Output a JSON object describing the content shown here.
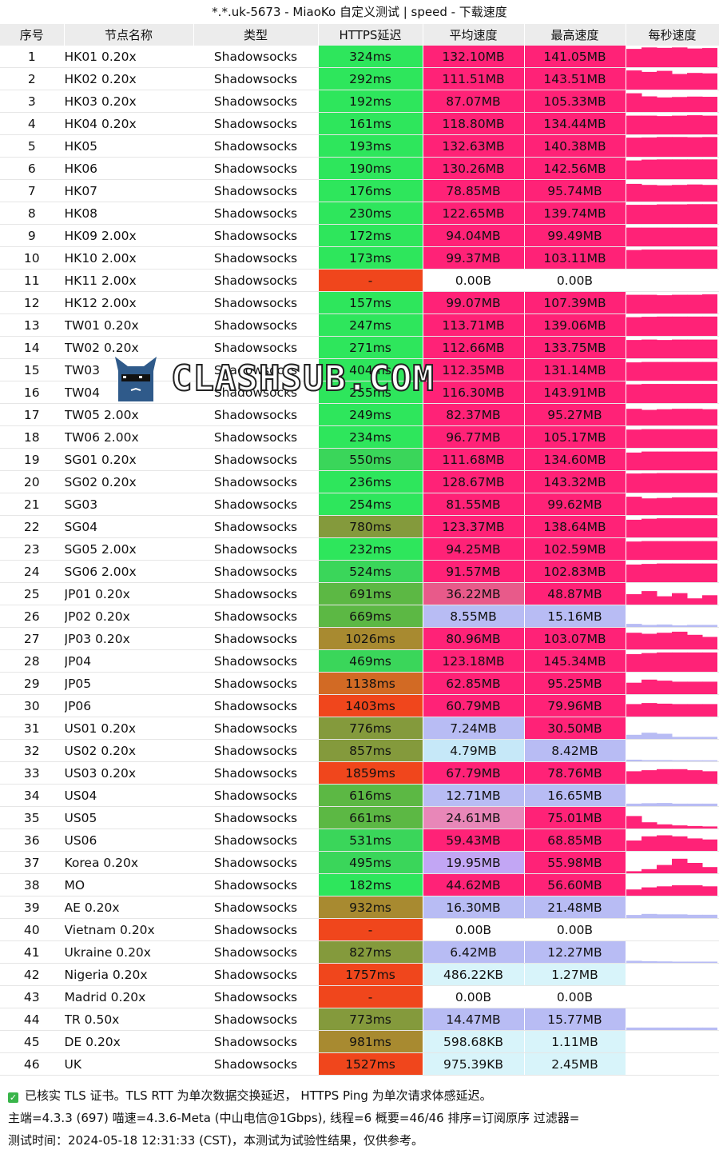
{
  "window": {
    "title": "*.*.uk-5673 - MiaoKo 自定义测试 | speed - 下载速度"
  },
  "columns": [
    "序号",
    "节点名称",
    "类型",
    "HTTPS延迟",
    "平均速度",
    "最高速度",
    "每秒速度"
  ],
  "colors": {
    "header_bg": "#ececec",
    "ping_fast": "#2ee65c",
    "ping_ok": "#3ad65a",
    "ping_mid": "#5cb844",
    "ping_olive": "#849a3c",
    "ping_brown": "#a88a30",
    "ping_orange": "#d26a24",
    "ping_red": "#f0461c",
    "speed_high": "#ff2277",
    "speed_mid": "#e85a8a",
    "speed_pink": "#e887b8",
    "speed_purple": "#c2a6f4",
    "speed_lav": "#b8bcf4",
    "speed_light": "#c6e8f8",
    "speed_pale": "#d8f4fa",
    "speed_zero": "#ffffff",
    "bar_high": "#ff2277",
    "bar_low": "#b8bcf4"
  },
  "rows": [
    {
      "idx": "1",
      "name": "HK01 0.20x",
      "type": "Shadowsocks",
      "ping": "324ms",
      "avg": "132.10MB",
      "max": "141.05MB",
      "pc": "ping_fast",
      "ac": "speed_high",
      "mc": "speed_high",
      "bar": [
        0.88,
        0.95,
        0.93,
        0.95,
        0.9,
        0.92
      ],
      "bc": "bar_high"
    },
    {
      "idx": "2",
      "name": "HK02 0.20x",
      "type": "Shadowsocks",
      "ping": "292ms",
      "avg": "111.51MB",
      "max": "143.51MB",
      "pc": "ping_fast",
      "ac": "speed_high",
      "mc": "speed_high",
      "bar": [
        0.92,
        0.85,
        0.9,
        0.75,
        0.8,
        0.78
      ],
      "bc": "bar_high"
    },
    {
      "idx": "3",
      "name": "HK03 0.20x",
      "type": "Shadowsocks",
      "ping": "192ms",
      "avg": "87.07MB",
      "max": "105.33MB",
      "pc": "ping_fast",
      "ac": "speed_high",
      "mc": "speed_high",
      "bar": [
        0.9,
        0.75,
        0.7,
        0.72,
        0.74,
        0.73
      ],
      "bc": "bar_high"
    },
    {
      "idx": "4",
      "name": "HK04 0.20x",
      "type": "Shadowsocks",
      "ping": "161ms",
      "avg": "118.80MB",
      "max": "134.44MB",
      "pc": "ping_fast",
      "ac": "speed_high",
      "mc": "speed_high",
      "bar": [
        0.9,
        0.9,
        0.88,
        0.9,
        0.92,
        0.9
      ],
      "bc": "bar_high"
    },
    {
      "idx": "5",
      "name": "HK05",
      "type": "Shadowsocks",
      "ping": "193ms",
      "avg": "132.63MB",
      "max": "140.38MB",
      "pc": "ping_fast",
      "ac": "speed_high",
      "mc": "speed_high",
      "bar": [
        0.92,
        0.93,
        0.95,
        0.95,
        0.94,
        0.95
      ],
      "bc": "bar_high"
    },
    {
      "idx": "6",
      "name": "HK06",
      "type": "Shadowsocks",
      "ping": "190ms",
      "avg": "130.26MB",
      "max": "142.56MB",
      "pc": "ping_fast",
      "ac": "speed_high",
      "mc": "speed_high",
      "bar": [
        0.9,
        0.94,
        0.95,
        0.95,
        0.95,
        0.95
      ],
      "bc": "bar_high"
    },
    {
      "idx": "7",
      "name": "HK07",
      "type": "Shadowsocks",
      "ping": "176ms",
      "avg": "78.85MB",
      "max": "95.74MB",
      "pc": "ping_fast",
      "ac": "speed_high",
      "mc": "speed_high",
      "bar": [
        0.85,
        0.8,
        0.78,
        0.8,
        0.82,
        0.8
      ],
      "bc": "bar_high"
    },
    {
      "idx": "8",
      "name": "HK08",
      "type": "Shadowsocks",
      "ping": "230ms",
      "avg": "122.65MB",
      "max": "139.74MB",
      "pc": "ping_fast",
      "ac": "speed_high",
      "mc": "speed_high",
      "bar": [
        0.92,
        0.92,
        0.94,
        0.94,
        0.95,
        0.95
      ],
      "bc": "bar_high"
    },
    {
      "idx": "9",
      "name": "HK09 2.00x",
      "type": "Shadowsocks",
      "ping": "172ms",
      "avg": "94.04MB",
      "max": "99.49MB",
      "pc": "ping_fast",
      "ac": "speed_high",
      "mc": "speed_high",
      "bar": [
        0.9,
        0.9,
        0.9,
        0.9,
        0.9,
        0.9
      ],
      "bc": "bar_high"
    },
    {
      "idx": "10",
      "name": "HK10 2.00x",
      "type": "Shadowsocks",
      "ping": "173ms",
      "avg": "99.37MB",
      "max": "103.11MB",
      "pc": "ping_fast",
      "ac": "speed_high",
      "mc": "speed_high",
      "bar": [
        0.9,
        0.92,
        0.92,
        0.92,
        0.92,
        0.92
      ],
      "bc": "bar_high"
    },
    {
      "idx": "11",
      "name": "HK11 2.00x",
      "type": "Shadowsocks",
      "ping": "-",
      "avg": "0.00B",
      "max": "0.00B",
      "pc": "ping_red",
      "ac": "speed_zero",
      "mc": "speed_zero",
      "bar": [
        0,
        0,
        0,
        0,
        0,
        0
      ],
      "bc": "bar_high"
    },
    {
      "idx": "12",
      "name": "HK12 2.00x",
      "type": "Shadowsocks",
      "ping": "157ms",
      "avg": "99.07MB",
      "max": "107.39MB",
      "pc": "ping_fast",
      "ac": "speed_high",
      "mc": "speed_high",
      "bar": [
        0.9,
        0.9,
        0.88,
        0.9,
        0.9,
        0.92
      ],
      "bc": "bar_high"
    },
    {
      "idx": "13",
      "name": "TW01 0.20x",
      "type": "Shadowsocks",
      "ping": "247ms",
      "avg": "113.71MB",
      "max": "139.06MB",
      "pc": "ping_fast",
      "ac": "speed_high",
      "mc": "speed_high",
      "bar": [
        0.9,
        0.92,
        0.93,
        0.93,
        0.93,
        0.93
      ],
      "bc": "bar_high"
    },
    {
      "idx": "14",
      "name": "TW02 0.20x",
      "type": "Shadowsocks",
      "ping": "271ms",
      "avg": "112.66MB",
      "max": "133.75MB",
      "pc": "ping_fast",
      "ac": "speed_high",
      "mc": "speed_high",
      "bar": [
        0.88,
        0.9,
        0.88,
        0.9,
        0.9,
        0.9
      ],
      "bc": "bar_high"
    },
    {
      "idx": "15",
      "name": "TW03",
      "type": "Shadowsocks",
      "ping": "404ms",
      "avg": "112.35MB",
      "max": "131.14MB",
      "pc": "ping_fast",
      "ac": "speed_high",
      "mc": "speed_high",
      "bar": [
        0.88,
        0.9,
        0.9,
        0.9,
        0.9,
        0.9
      ],
      "bc": "bar_high"
    },
    {
      "idx": "16",
      "name": "TW04",
      "type": "Shadowsocks",
      "ping": "255ms",
      "avg": "116.30MB",
      "max": "143.91MB",
      "pc": "ping_fast",
      "ac": "speed_high",
      "mc": "speed_high",
      "bar": [
        0.9,
        0.92,
        0.92,
        0.92,
        0.92,
        0.92
      ],
      "bc": "bar_high"
    },
    {
      "idx": "17",
      "name": "TW05 2.00x",
      "type": "Shadowsocks",
      "ping": "249ms",
      "avg": "82.37MB",
      "max": "95.27MB",
      "pc": "ping_fast",
      "ac": "speed_high",
      "mc": "speed_high",
      "bar": [
        0.8,
        0.75,
        0.78,
        0.8,
        0.8,
        0.78
      ],
      "bc": "bar_high"
    },
    {
      "idx": "18",
      "name": "TW06 2.00x",
      "type": "Shadowsocks",
      "ping": "234ms",
      "avg": "96.77MB",
      "max": "105.17MB",
      "pc": "ping_fast",
      "ac": "speed_high",
      "mc": "speed_high",
      "bar": [
        0.88,
        0.9,
        0.9,
        0.9,
        0.9,
        0.9
      ],
      "bc": "bar_high"
    },
    {
      "idx": "19",
      "name": "SG01 0.20x",
      "type": "Shadowsocks",
      "ping": "550ms",
      "avg": "111.68MB",
      "max": "134.60MB",
      "pc": "ping_ok",
      "ac": "speed_high",
      "mc": "speed_high",
      "bar": [
        0.85,
        0.9,
        0.9,
        0.9,
        0.9,
        0.9
      ],
      "bc": "bar_high"
    },
    {
      "idx": "20",
      "name": "SG02 0.20x",
      "type": "Shadowsocks",
      "ping": "236ms",
      "avg": "128.67MB",
      "max": "143.32MB",
      "pc": "ping_fast",
      "ac": "speed_high",
      "mc": "speed_high",
      "bar": [
        0.92,
        0.93,
        0.94,
        0.94,
        0.94,
        0.94
      ],
      "bc": "bar_high"
    },
    {
      "idx": "21",
      "name": "SG03",
      "type": "Shadowsocks",
      "ping": "254ms",
      "avg": "81.55MB",
      "max": "99.62MB",
      "pc": "ping_fast",
      "ac": "speed_high",
      "mc": "speed_high",
      "bar": [
        0.88,
        0.8,
        0.82,
        0.85,
        0.85,
        0.85
      ],
      "bc": "bar_high"
    },
    {
      "idx": "22",
      "name": "SG04",
      "type": "Shadowsocks",
      "ping": "780ms",
      "avg": "123.37MB",
      "max": "138.64MB",
      "pc": "ping_olive",
      "ac": "speed_high",
      "mc": "speed_high",
      "bar": [
        0.85,
        0.9,
        0.92,
        0.92,
        0.92,
        0.92
      ],
      "bc": "bar_high"
    },
    {
      "idx": "23",
      "name": "SG05 2.00x",
      "type": "Shadowsocks",
      "ping": "232ms",
      "avg": "94.25MB",
      "max": "102.59MB",
      "pc": "ping_fast",
      "ac": "speed_high",
      "mc": "speed_high",
      "bar": [
        0.88,
        0.9,
        0.9,
        0.9,
        0.9,
        0.9
      ],
      "bc": "bar_high"
    },
    {
      "idx": "24",
      "name": "SG06 2.00x",
      "type": "Shadowsocks",
      "ping": "524ms",
      "avg": "91.57MB",
      "max": "102.83MB",
      "pc": "ping_ok",
      "ac": "speed_high",
      "mc": "speed_high",
      "bar": [
        0.85,
        0.88,
        0.9,
        0.9,
        0.9,
        0.9
      ],
      "bc": "bar_high"
    },
    {
      "idx": "25",
      "name": "JP01 0.20x",
      "type": "Shadowsocks",
      "ping": "691ms",
      "avg": "36.22MB",
      "max": "48.87MB",
      "pc": "ping_mid",
      "ac": "speed_mid",
      "mc": "speed_high",
      "bar": [
        0.5,
        0.65,
        0.4,
        0.55,
        0.3,
        0.45
      ],
      "bc": "bar_high"
    },
    {
      "idx": "26",
      "name": "JP02 0.20x",
      "type": "Shadowsocks",
      "ping": "669ms",
      "avg": "8.55MB",
      "max": "15.16MB",
      "pc": "ping_mid",
      "ac": "speed_lav",
      "mc": "speed_lav",
      "bar": [
        0.15,
        0.1,
        0.12,
        0.08,
        0.1,
        0.1
      ],
      "bc": "bar_low"
    },
    {
      "idx": "27",
      "name": "JP03 0.20x",
      "type": "Shadowsocks",
      "ping": "1026ms",
      "avg": "80.96MB",
      "max": "103.07MB",
      "pc": "ping_brown",
      "ac": "speed_high",
      "mc": "speed_high",
      "bar": [
        0.8,
        0.75,
        0.8,
        0.85,
        0.7,
        0.6
      ],
      "bc": "bar_high"
    },
    {
      "idx": "28",
      "name": "JP04",
      "type": "Shadowsocks",
      "ping": "469ms",
      "avg": "123.18MB",
      "max": "145.34MB",
      "pc": "ping_ok",
      "ac": "speed_high",
      "mc": "speed_high",
      "bar": [
        0.85,
        0.9,
        0.93,
        0.93,
        0.93,
        0.93
      ],
      "bc": "bar_high"
    },
    {
      "idx": "29",
      "name": "JP05",
      "type": "Shadowsocks",
      "ping": "1138ms",
      "avg": "62.85MB",
      "max": "95.25MB",
      "pc": "ping_orange",
      "ac": "speed_high",
      "mc": "speed_high",
      "bar": [
        0.55,
        0.7,
        0.65,
        0.6,
        0.6,
        0.6
      ],
      "bc": "bar_high"
    },
    {
      "idx": "30",
      "name": "JP06",
      "type": "Shadowsocks",
      "ping": "1403ms",
      "avg": "60.79MB",
      "max": "79.96MB",
      "pc": "ping_red",
      "ac": "speed_high",
      "mc": "speed_high",
      "bar": [
        0.6,
        0.65,
        0.62,
        0.6,
        0.6,
        0.6
      ],
      "bc": "bar_high"
    },
    {
      "idx": "31",
      "name": "US01 0.20x",
      "type": "Shadowsocks",
      "ping": "776ms",
      "avg": "7.24MB",
      "max": "30.50MB",
      "pc": "ping_olive",
      "ac": "speed_lav",
      "mc": "speed_high",
      "bar": [
        0.2,
        0.3,
        0.25,
        0.1,
        0.1,
        0.1
      ],
      "bc": "bar_low"
    },
    {
      "idx": "32",
      "name": "US02 0.20x",
      "type": "Shadowsocks",
      "ping": "857ms",
      "avg": "4.79MB",
      "max": "8.42MB",
      "pc": "ping_olive",
      "ac": "speed_light",
      "mc": "speed_lav",
      "bar": [
        0.08,
        0.06,
        0.06,
        0.05,
        0.05,
        0.05
      ],
      "bc": "bar_low"
    },
    {
      "idx": "33",
      "name": "US03 0.20x",
      "type": "Shadowsocks",
      "ping": "1859ms",
      "avg": "67.79MB",
      "max": "78.76MB",
      "pc": "ping_red",
      "ac": "speed_high",
      "mc": "speed_high",
      "bar": [
        0.6,
        0.65,
        0.7,
        0.7,
        0.65,
        0.6
      ],
      "bc": "bar_high"
    },
    {
      "idx": "34",
      "name": "US04",
      "type": "Shadowsocks",
      "ping": "616ms",
      "avg": "12.71MB",
      "max": "16.65MB",
      "pc": "ping_mid",
      "ac": "speed_lav",
      "mc": "speed_lav",
      "bar": [
        0.12,
        0.14,
        0.15,
        0.12,
        0.12,
        0.12
      ],
      "bc": "bar_low"
    },
    {
      "idx": "35",
      "name": "US05",
      "type": "Shadowsocks",
      "ping": "661ms",
      "avg": "24.61MB",
      "max": "75.01MB",
      "pc": "ping_mid",
      "ac": "speed_pink",
      "mc": "speed_high",
      "bar": [
        0.6,
        0.3,
        0.2,
        0.15,
        0.12,
        0.1
      ],
      "bc": "bar_high"
    },
    {
      "idx": "36",
      "name": "US06",
      "type": "Shadowsocks",
      "ping": "531ms",
      "avg": "59.43MB",
      "max": "68.85MB",
      "pc": "ping_ok",
      "ac": "speed_high",
      "mc": "speed_high",
      "bar": [
        0.5,
        0.7,
        0.75,
        0.7,
        0.6,
        0.55
      ],
      "bc": "bar_high"
    },
    {
      "idx": "37",
      "name": "Korea 0.20x",
      "type": "Shadowsocks",
      "ping": "495ms",
      "avg": "19.95MB",
      "max": "55.98MB",
      "pc": "ping_ok",
      "ac": "speed_purple",
      "mc": "speed_high",
      "bar": [
        0.1,
        0.2,
        0.4,
        0.7,
        0.5,
        0.3
      ],
      "bc": "bar_high"
    },
    {
      "idx": "38",
      "name": "MO",
      "type": "Shadowsocks",
      "ping": "182ms",
      "avg": "44.62MB",
      "max": "56.60MB",
      "pc": "ping_fast",
      "ac": "speed_high",
      "mc": "speed_high",
      "bar": [
        0.3,
        0.4,
        0.45,
        0.5,
        0.5,
        0.45
      ],
      "bc": "bar_high"
    },
    {
      "idx": "39",
      "name": "AE 0.20x",
      "type": "Shadowsocks",
      "ping": "932ms",
      "avg": "16.30MB",
      "max": "21.48MB",
      "pc": "ping_brown",
      "ac": "speed_lav",
      "mc": "speed_lav",
      "bar": [
        0.15,
        0.2,
        0.18,
        0.18,
        0.16,
        0.16
      ],
      "bc": "bar_low"
    },
    {
      "idx": "40",
      "name": "Vietnam 0.20x",
      "type": "Shadowsocks",
      "ping": "-",
      "avg": "0.00B",
      "max": "0.00B",
      "pc": "ping_red",
      "ac": "speed_zero",
      "mc": "speed_zero",
      "bar": [
        0,
        0,
        0,
        0,
        0,
        0
      ],
      "bc": "bar_low"
    },
    {
      "idx": "41",
      "name": "Ukraine 0.20x",
      "type": "Shadowsocks",
      "ping": "827ms",
      "avg": "6.42MB",
      "max": "12.27MB",
      "pc": "ping_olive",
      "ac": "speed_lav",
      "mc": "speed_lav",
      "bar": [
        0.1,
        0.08,
        0.07,
        0.06,
        0.06,
        0.06
      ],
      "bc": "bar_low"
    },
    {
      "idx": "42",
      "name": "Nigeria 0.20x",
      "type": "Shadowsocks",
      "ping": "1757ms",
      "avg": "486.22KB",
      "max": "1.27MB",
      "pc": "ping_red",
      "ac": "speed_pale",
      "mc": "speed_pale",
      "bar": [
        0,
        0,
        0,
        0,
        0,
        0
      ],
      "bc": "bar_low"
    },
    {
      "idx": "43",
      "name": "Madrid 0.20x",
      "type": "Shadowsocks",
      "ping": "-",
      "avg": "0.00B",
      "max": "0.00B",
      "pc": "ping_red",
      "ac": "speed_zero",
      "mc": "speed_zero",
      "bar": [
        0,
        0,
        0,
        0,
        0,
        0
      ],
      "bc": "bar_low"
    },
    {
      "idx": "44",
      "name": "TR 0.50x",
      "type": "Shadowsocks",
      "ping": "773ms",
      "avg": "14.47MB",
      "max": "15.77MB",
      "pc": "ping_olive",
      "ac": "speed_lav",
      "mc": "speed_lav",
      "bar": [
        0.12,
        0.12,
        0.12,
        0.12,
        0.12,
        0.12
      ],
      "bc": "bar_low"
    },
    {
      "idx": "45",
      "name": "DE 0.20x",
      "type": "Shadowsocks",
      "ping": "981ms",
      "avg": "598.68KB",
      "max": "1.11MB",
      "pc": "ping_brown",
      "ac": "speed_pale",
      "mc": "speed_pale",
      "bar": [
        0,
        0,
        0,
        0,
        0,
        0
      ],
      "bc": "bar_low"
    },
    {
      "idx": "46",
      "name": "UK",
      "type": "Shadowsocks",
      "ping": "1527ms",
      "avg": "975.39KB",
      "max": "2.45MB",
      "pc": "ping_red",
      "ac": "speed_pale",
      "mc": "speed_pale",
      "bar": [
        0,
        0,
        0,
        0,
        0,
        0
      ],
      "bc": "bar_low"
    }
  ],
  "footer": {
    "line1": "已核实 TLS 证书。TLS RTT 为单次数据交换延迟， HTTPS Ping 为单次请求体感延迟。",
    "line2": "主端=4.3.3 (697) 喵速=4.3.6-Meta (中山电信@1Gbps), 线程=6 概要=46/46 排序=订阅原序 过滤器=",
    "line3": "测试时间：2024-05-18 12:31:33 (CST)，本测试为试验性结果，仅供参考。"
  },
  "logo": {
    "text": "CLASHSUB.COM",
    "icon": "cat-sunglasses-icon"
  }
}
